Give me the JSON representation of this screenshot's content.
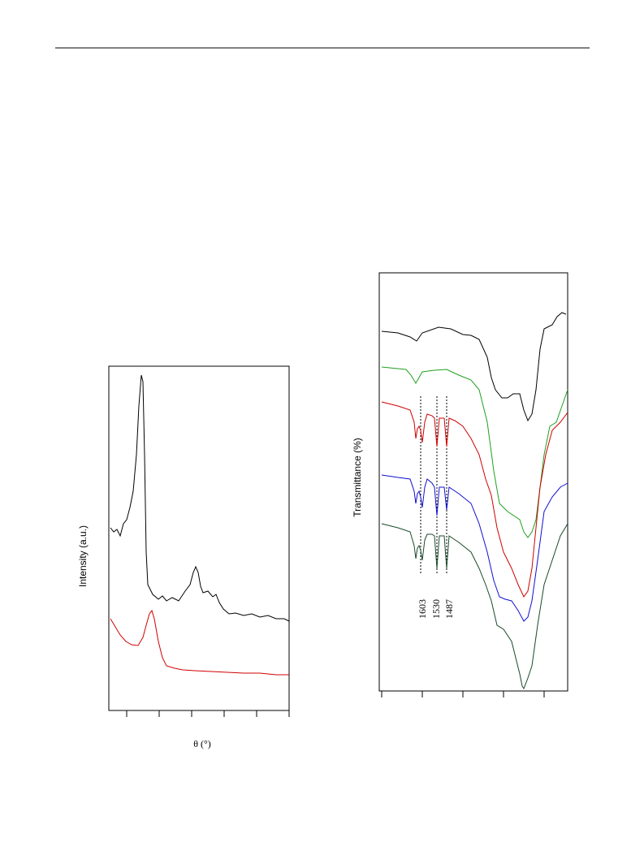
{
  "figure_left": {
    "y_label": "Intensity (a.u.)",
    "x_label": "θ (°)"
  },
  "figure_right": {
    "y_label": "Transmittance (%)",
    "peak_labels": [
      "1603",
      "1530",
      "1487"
    ]
  }
}
